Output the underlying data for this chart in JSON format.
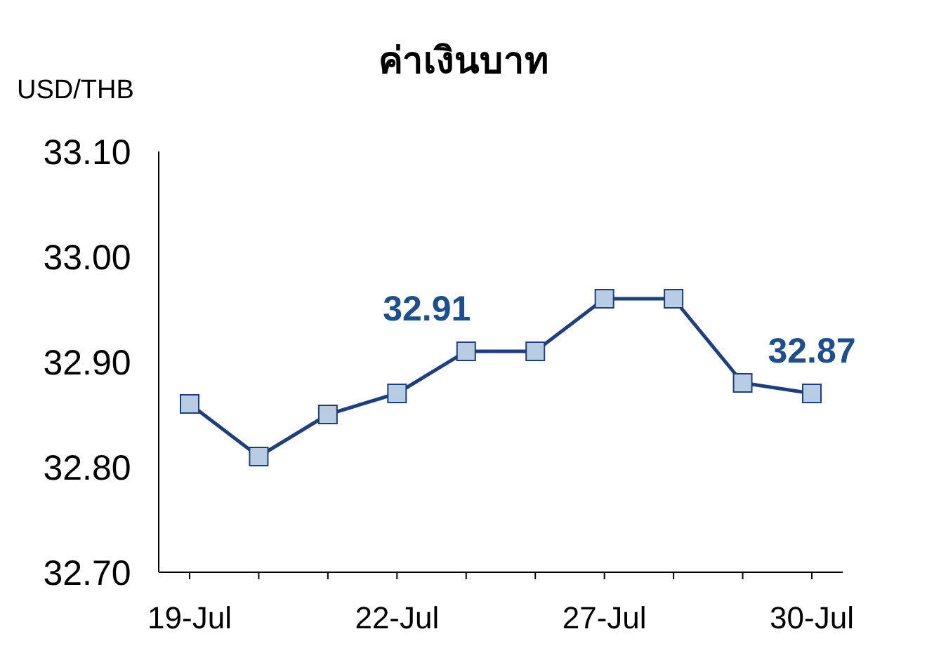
{
  "chart_data": {
    "type": "line",
    "title": "ค่าเงินบาท",
    "ylabel": "USD/THB",
    "categories": [
      "19-Jul",
      null,
      null,
      "22-Jul",
      null,
      null,
      "27-Jul",
      null,
      null,
      "30-Jul"
    ],
    "series": [
      {
        "color": "#1f3f7a",
        "values": [
          32.86,
          32.81,
          32.85,
          32.87,
          32.91,
          32.91,
          32.96,
          32.96,
          32.88,
          32.87
        ],
        "value_labels": [
          null,
          null,
          null,
          null,
          "32.91",
          null,
          null,
          null,
          null,
          "32.87"
        ]
      }
    ],
    "ylim": [
      32.7,
      33.1
    ],
    "yticks": [
      {
        "value": 32.7,
        "label": "32.70"
      },
      {
        "value": 32.8,
        "label": "32.80"
      },
      {
        "value": 32.9,
        "label": "32.90"
      },
      {
        "value": 33.0,
        "label": "33.00"
      },
      {
        "value": 33.1,
        "label": "33.10"
      }
    ],
    "marker": "square"
  }
}
